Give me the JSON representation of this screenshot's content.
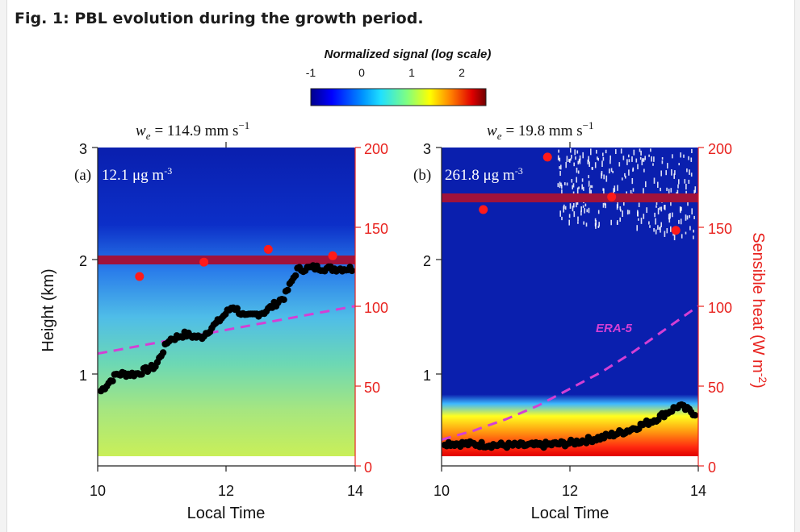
{
  "figure_title": "Fig. 1: PBL evolution during the growth period.",
  "colorbar": {
    "title": "Normalized signal (log scale)",
    "ticks": [
      "-1",
      "0",
      "1",
      "2"
    ]
  },
  "panels": [
    {
      "label": "(a)",
      "we_text": "w",
      "we_sub": "e",
      "we_value": "= 114.9 mm s",
      "we_exp": "−1",
      "conc_value": "12.1 μg m",
      "conc_exp": "-3"
    },
    {
      "label": "(b)",
      "we_text": "w",
      "we_sub": "e",
      "we_value": "= 19.8 mm s",
      "we_exp": "−1",
      "conc_value": "261.8 μg m",
      "conc_exp": "-3",
      "era_label": "ERA-5"
    }
  ],
  "axes": {
    "xlabel": "Local Time",
    "ylabel": "Height (km)",
    "y2label": "Sensible heat (W m",
    "y2label_exp": "-2",
    "y2label_close": ")",
    "xticks": [
      "10",
      "12",
      "14"
    ],
    "yticks": [
      "1",
      "2",
      "3"
    ],
    "y2ticks": [
      "0",
      "50",
      "100",
      "150",
      "200"
    ]
  },
  "chart_data": [
    {
      "type": "scatter",
      "panel": "a",
      "x_unit": "hour",
      "xlim": [
        10,
        14
      ],
      "ylim": [
        0.2,
        3
      ],
      "y2lim": [
        0,
        200
      ],
      "pbl_height_km": {
        "x": [
          10.05,
          10.3,
          10.6,
          10.9,
          11.1,
          11.35,
          11.6,
          11.85,
          12.1,
          12.3,
          12.6,
          12.9,
          13.1,
          13.35,
          13.6,
          13.95
        ],
        "y": [
          0.85,
          1.0,
          1.0,
          1.07,
          1.3,
          1.35,
          1.32,
          1.45,
          1.6,
          1.5,
          1.55,
          1.68,
          1.92,
          1.94,
          1.93,
          1.93
        ]
      },
      "era5_pbl_km": {
        "x": [
          10,
          14
        ],
        "y": [
          1.18,
          1.6
        ]
      },
      "sensible_heat_W_m2": {
        "x": [
          10.65,
          11.65,
          12.65,
          13.65
        ],
        "y": [
          119,
          128,
          136,
          132
        ]
      },
      "sensible_heat_band_W_m2": 128
    },
    {
      "type": "scatter",
      "panel": "b",
      "x_unit": "hour",
      "xlim": [
        10,
        14
      ],
      "ylim": [
        0.2,
        3
      ],
      "y2lim": [
        0,
        200
      ],
      "pbl_height_km": {
        "x": [
          10.05,
          10.5,
          11.0,
          11.5,
          12.0,
          12.5,
          12.9,
          13.3,
          13.7,
          13.95
        ],
        "y": [
          0.39,
          0.38,
          0.37,
          0.37,
          0.39,
          0.44,
          0.5,
          0.59,
          0.72,
          0.65
        ]
      },
      "era5_pbl_km": {
        "x": [
          10,
          10.5,
          11,
          11.5,
          12,
          12.5,
          13,
          13.5,
          14
        ],
        "y": [
          0.42,
          0.5,
          0.6,
          0.72,
          0.87,
          1.02,
          1.2,
          1.4,
          1.6
        ]
      },
      "sensible_heat_W_m2": {
        "x": [
          10.65,
          11.65,
          12.65,
          13.65
        ],
        "y": [
          161,
          194,
          169,
          148
        ]
      },
      "sensible_heat_band_W_m2": 170
    }
  ]
}
